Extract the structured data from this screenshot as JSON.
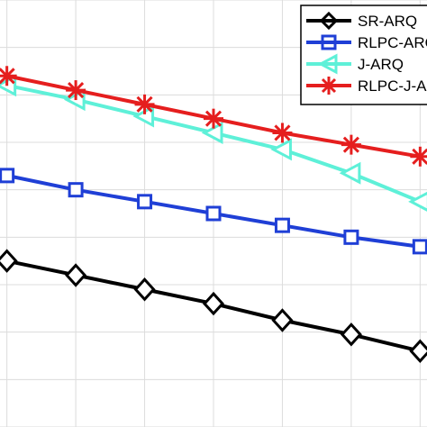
{
  "chart_data": {
    "type": "line",
    "x": [
      1,
      2,
      3,
      4,
      5,
      6,
      7
    ],
    "xlim": [
      0.9,
      7.1
    ],
    "ylim": [
      0,
      9
    ],
    "grid": true,
    "legend_position": "top-right",
    "series": [
      {
        "name": "SR-ARQ",
        "marker": "diamond",
        "color": "#000000",
        "values": [
          3.5,
          3.2,
          2.9,
          2.6,
          2.25,
          1.95,
          1.6
        ]
      },
      {
        "name": "RLPC-ARQ",
        "marker": "square",
        "color": "#1f3fd6",
        "values": [
          5.3,
          5.0,
          4.75,
          4.5,
          4.25,
          4.0,
          3.8
        ]
      },
      {
        "name": "J-ARQ",
        "marker": "triangle-left",
        "color": "#5ef0d8",
        "values": [
          7.2,
          6.9,
          6.55,
          6.2,
          5.85,
          5.35,
          4.75
        ]
      },
      {
        "name": "RLPC-J-ARQ",
        "marker": "asterisk",
        "color": "#e51e1e",
        "values": [
          7.4,
          7.1,
          6.8,
          6.5,
          6.2,
          5.95,
          5.7
        ]
      }
    ]
  }
}
